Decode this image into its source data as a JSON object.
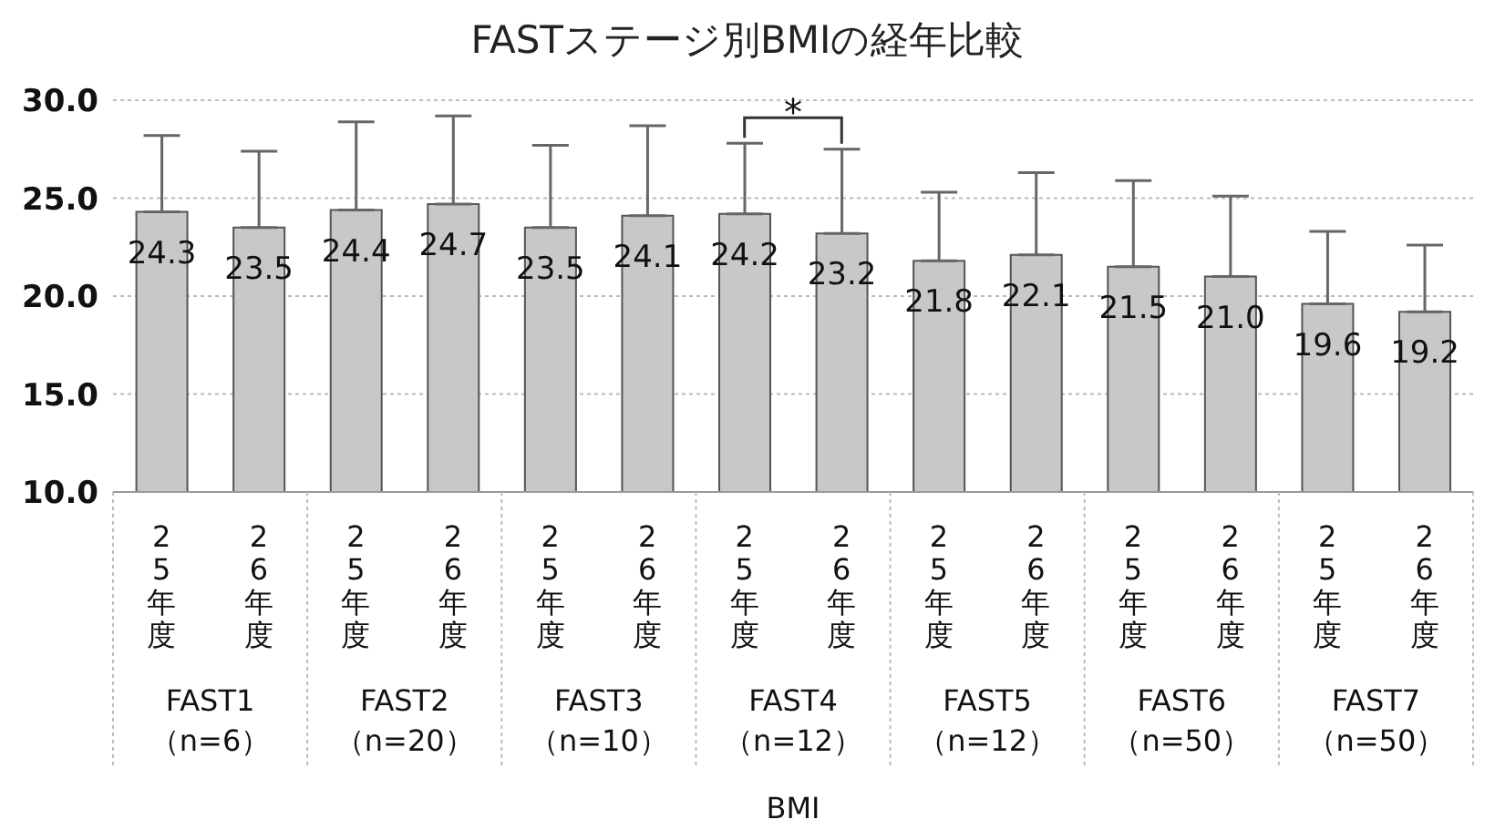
{
  "chart_data": {
    "type": "bar",
    "title": "FASTステージ別BMIの経年比較",
    "categories": [
      "25年度",
      "26年度",
      "25年度",
      "26年度",
      "25年度",
      "26年度",
      "25年度",
      "26年度",
      "25年度",
      "26年度",
      "25年度",
      "26年度",
      "25年度",
      "26年度"
    ],
    "values": [
      24.3,
      23.5,
      24.4,
      24.7,
      23.5,
      24.1,
      24.2,
      23.2,
      21.8,
      22.1,
      21.5,
      21.0,
      19.6,
      19.2
    ],
    "value_labels": [
      "24.3",
      "23.5",
      "24.4",
      "24.7",
      "23.5",
      "24.1",
      "24.2",
      "23.2",
      "21.8",
      "22.1",
      "21.5",
      "21.0",
      "19.6",
      "19.2"
    ],
    "errors": [
      [
        24.3,
        28.2
      ],
      [
        23.5,
        27.4
      ],
      [
        24.4,
        28.9
      ],
      [
        24.7,
        29.2
      ],
      [
        23.5,
        27.7
      ],
      [
        24.1,
        28.7
      ],
      [
        24.2,
        27.8
      ],
      [
        23.2,
        27.5
      ],
      [
        21.8,
        25.3
      ],
      [
        22.1,
        26.3
      ],
      [
        21.5,
        25.9
      ],
      [
        21.0,
        25.1
      ],
      [
        19.6,
        23.3
      ],
      [
        19.2,
        22.6
      ]
    ],
    "color": "#c8c8c8",
    "ylim": [
      10,
      30
    ],
    "yticks": [
      {
        "value": 10,
        "label": "10.0"
      },
      {
        "value": 15,
        "label": "15.0"
      },
      {
        "value": 20,
        "label": "20.0"
      },
      {
        "value": 25,
        "label": "25.0"
      },
      {
        "value": 30,
        "label": "30.0"
      }
    ],
    "grid": "y",
    "annotations": [
      "FAST1\n（n=6）",
      "FAST2\n（n=20）",
      "FAST3\n（n=10）",
      "FAST4\n（n=12）",
      "FAST5\n（n=12）",
      "FAST6\n（n=50）",
      "FAST7\n（n=50）",
      "BMI",
      "*"
    ]
  }
}
